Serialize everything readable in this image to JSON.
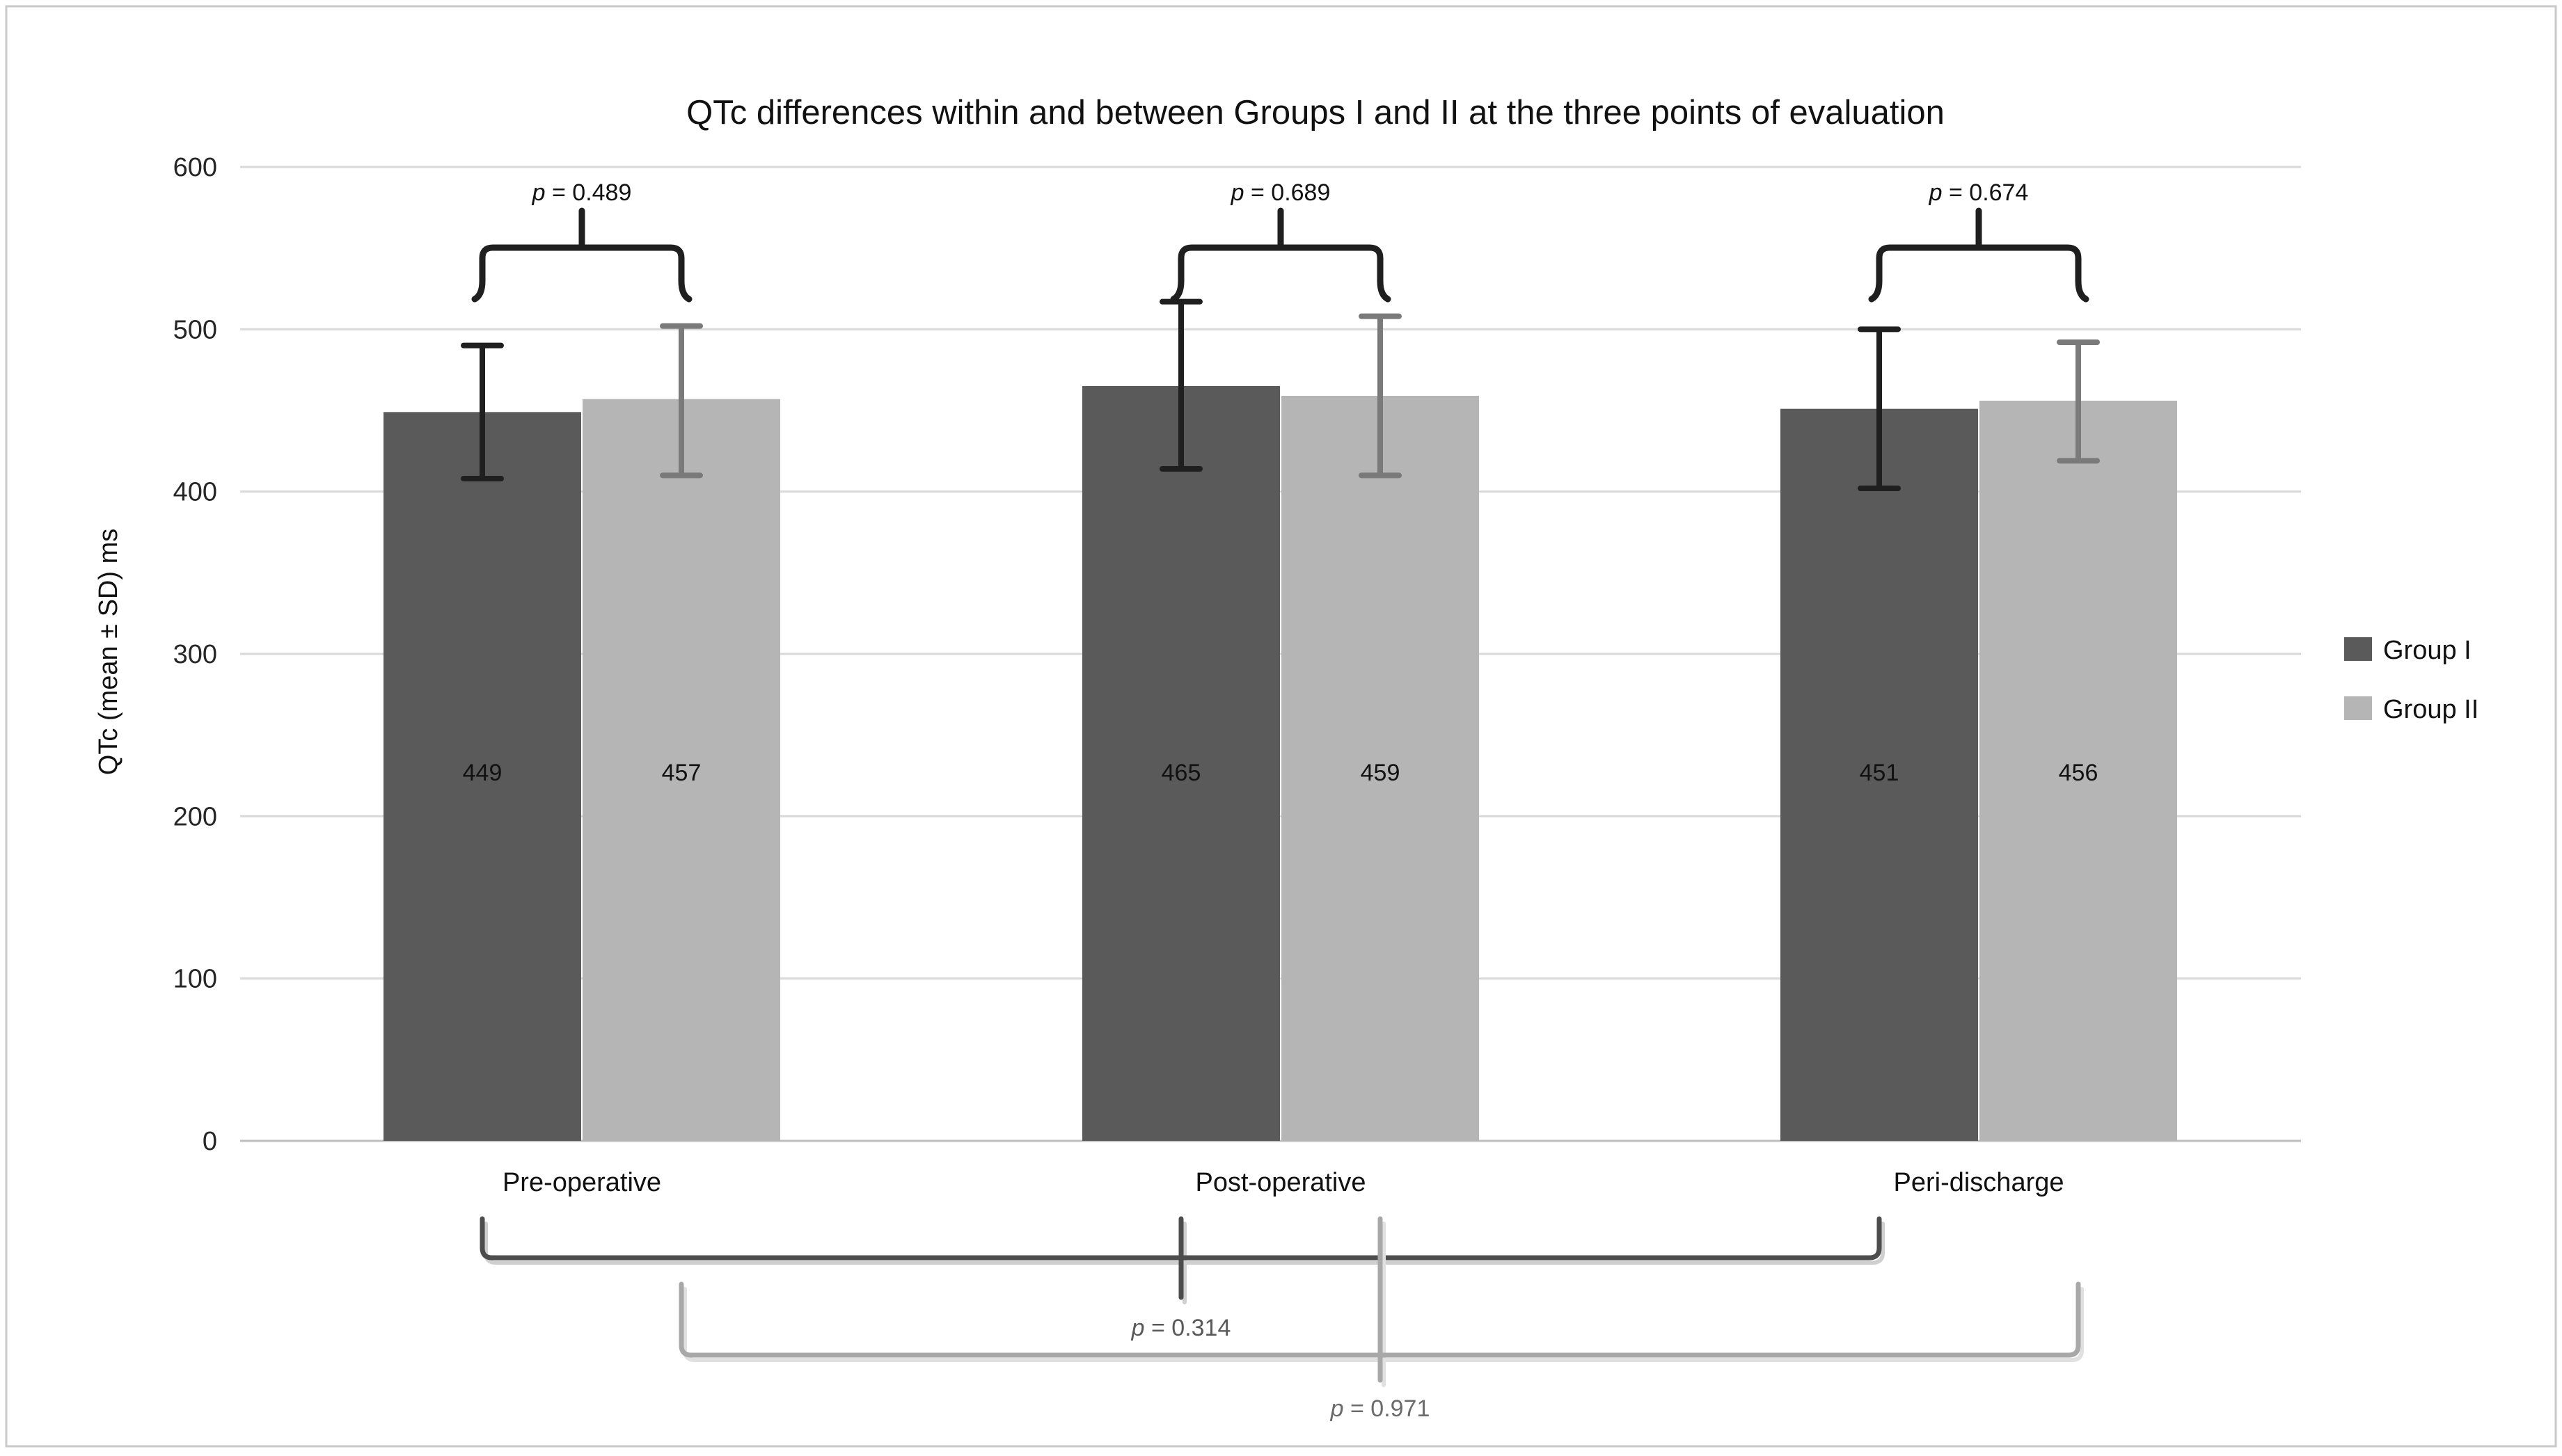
{
  "chart_data": {
    "type": "bar",
    "title": "QTc differences within and between Groups I and II at the three points of evaluation",
    "ylabel": "QTc (mean ± SD) ms",
    "xlabel": "",
    "ylim": [
      0,
      600
    ],
    "yticks": [
      0,
      100,
      200,
      300,
      400,
      500,
      600
    ],
    "grid": true,
    "legend_position": "right",
    "categories": [
      "Pre-operative",
      "Post-operative",
      "Peri-discharge"
    ],
    "series": [
      {
        "name": "Group I",
        "color": "#5a5a5a",
        "error_color": "#1f1f1f",
        "values": [
          449,
          465,
          451
        ],
        "error_low": [
          408,
          414,
          402
        ],
        "error_high": [
          490,
          517,
          500
        ]
      },
      {
        "name": "Group II",
        "color": "#b5b5b5",
        "error_color": "#7a7a7a",
        "values": [
          457,
          459,
          456
        ],
        "error_low": [
          410,
          410,
          419
        ],
        "error_high": [
          502,
          508,
          492
        ]
      }
    ],
    "within_group_p": [
      {
        "category": "Pre-operative",
        "label": "p = 0.489"
      },
      {
        "category": "Post-operative",
        "label": "p = 0.689"
      },
      {
        "category": "Peri-discharge",
        "label": "p = 0.674"
      }
    ],
    "between_group_p": [
      {
        "series": "Group I",
        "label": "p = 0.314",
        "color": "#4d4d4d",
        "text_color": "#595959"
      },
      {
        "series": "Group II",
        "label": "p = 0.971",
        "color": "#a8a8a8",
        "text_color": "#6b6b6b"
      }
    ]
  }
}
